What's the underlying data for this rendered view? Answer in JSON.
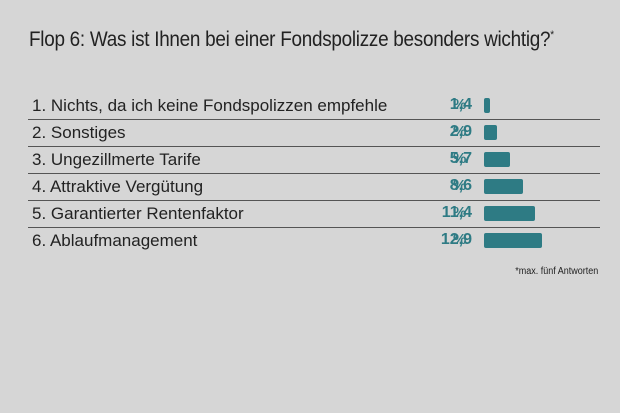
{
  "title": "Flop 6: Was ist Ihnen bei einer Fondspolizze besonders wichtig?",
  "title_mark": "*",
  "footnote": "*max. fünf Antworten",
  "percent_sign": "%",
  "colors": {
    "accent": "#2e7b84",
    "background": "#d6d6d6",
    "text": "#222222"
  },
  "chart_data": {
    "type": "bar",
    "orientation": "horizontal",
    "title": "Flop 6: Was ist Ihnen bei einer Fondspolizze besonders wichtig?",
    "categories": [
      "1. Nichts, da ich keine Fondspolizzen empfehle",
      "2. Sonstiges",
      "3. Ungezillmerte Tarife",
      "4. Attraktive Vergütung",
      "5. Garantierter Rentenfaktor",
      "6. Ablaufmanagement"
    ],
    "values": [
      1.4,
      2.9,
      5.7,
      8.6,
      11.4,
      12.9
    ],
    "value_labels": [
      "1,4",
      "2,9",
      "5,7",
      "8,6",
      "11,4",
      "12,9"
    ],
    "unit": "%",
    "xlim": [
      0,
      12.9
    ],
    "grid": false,
    "legend": "none"
  }
}
